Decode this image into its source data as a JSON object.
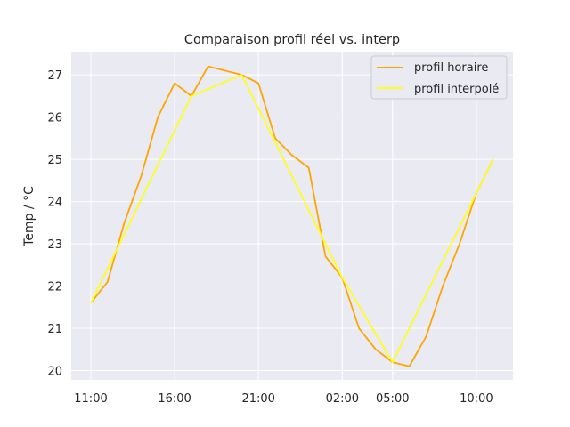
{
  "chart_data": {
    "type": "line",
    "title": "Comparaison profil réel vs. interp",
    "xlabel": "",
    "ylabel": "Temp / °C",
    "ylim": [
      19.78,
      27.55
    ],
    "y_ticks": [
      20,
      21,
      22,
      23,
      24,
      25,
      26,
      27
    ],
    "x_ticks": [
      "11:00",
      "16:00",
      "21:00",
      "02:00",
      "05:00",
      "10:00"
    ],
    "grid": true,
    "legend_position": "top-right",
    "background": "#eaeaf2",
    "series": [
      {
        "name": "profil horaire",
        "color": "#ffa500",
        "points": [
          [
            "11:00",
            21.6
          ],
          [
            "12:00",
            22.1
          ],
          [
            "13:00",
            23.5
          ],
          [
            "14:00",
            24.6
          ],
          [
            "15:00",
            26.0
          ],
          [
            "16:00",
            26.8
          ],
          [
            "17:00",
            26.5
          ],
          [
            "18:00",
            27.2
          ],
          [
            "19:00",
            27.1
          ],
          [
            "20:00",
            27.0
          ],
          [
            "21:00",
            26.8
          ],
          [
            "22:00",
            25.5
          ],
          [
            "23:00",
            25.1
          ],
          [
            "00:00",
            24.8
          ],
          [
            "01:00",
            22.7
          ],
          [
            "02:00",
            22.2
          ],
          [
            "03:00",
            21.0
          ],
          [
            "04:00",
            20.5
          ],
          [
            "05:00",
            20.2
          ],
          [
            "06:00",
            20.1
          ],
          [
            "07:00",
            20.8
          ],
          [
            "08:00",
            22.0
          ],
          [
            "09:00",
            23.0
          ],
          [
            "10:00",
            24.2
          ],
          [
            "11:00",
            25.0
          ]
        ]
      },
      {
        "name": "profil interpolé",
        "color": "#ffff1a",
        "points": [
          [
            "11:00",
            21.6
          ],
          [
            "17:00",
            26.5
          ],
          [
            "20:00",
            27.0
          ],
          [
            "02:00",
            22.2
          ],
          [
            "05:00",
            20.2
          ],
          [
            "11:00",
            25.0
          ]
        ]
      }
    ]
  }
}
